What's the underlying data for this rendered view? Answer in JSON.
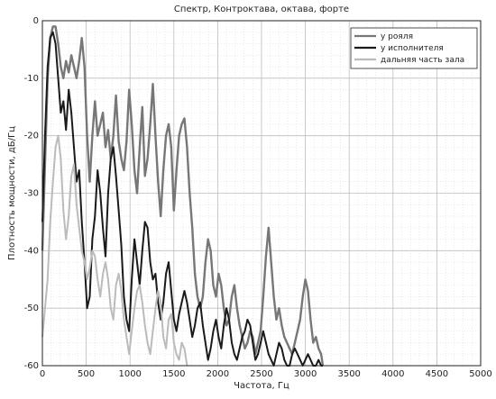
{
  "chart_data": {
    "type": "line",
    "title": "Спектр, Контроктава, октава, форте",
    "xlabel": "Частота, Гц",
    "ylabel": "Плотность мощности, дБ/Гц",
    "xlim": [
      0,
      5000
    ],
    "ylim": [
      -60,
      0
    ],
    "xticks": [
      0,
      500,
      1000,
      1500,
      2000,
      2500,
      3000,
      3500,
      4000,
      4500,
      5000
    ],
    "yticks": [
      0,
      -10,
      -20,
      -30,
      -40,
      -50,
      -60
    ],
    "grid": true,
    "legend": "top-right",
    "series": [
      {
        "name": "у рояля",
        "color": "#777777",
        "x": [
          0,
          30,
          60,
          90,
          120,
          150,
          180,
          210,
          240,
          270,
          300,
          330,
          360,
          390,
          420,
          450,
          480,
          510,
          540,
          570,
          600,
          630,
          660,
          690,
          720,
          750,
          780,
          810,
          840,
          870,
          900,
          930,
          960,
          990,
          1020,
          1050,
          1080,
          1110,
          1140,
          1170,
          1200,
          1230,
          1260,
          1290,
          1320,
          1350,
          1380,
          1410,
          1440,
          1470,
          1500,
          1530,
          1560,
          1590,
          1620,
          1650,
          1680,
          1710,
          1740,
          1770,
          1800,
          1830,
          1860,
          1890,
          1920,
          1950,
          1980,
          2010,
          2040,
          2070,
          2100,
          2130,
          2160,
          2190,
          2220,
          2250,
          2280,
          2310,
          2340,
          2370,
          2400,
          2430,
          2460,
          2490,
          2520,
          2550,
          2580,
          2610,
          2640,
          2670,
          2700,
          2730,
          2760,
          2790,
          2820,
          2850,
          2880,
          2910,
          2940,
          2970,
          3000,
          3030,
          3060,
          3090,
          3120,
          3150,
          3180,
          3200
        ],
        "y": [
          -40,
          -25,
          -10,
          -3,
          -1,
          -1,
          -4,
          -8,
          -10,
          -7,
          -9,
          -6,
          -8,
          -10,
          -7,
          -3,
          -8,
          -20,
          -28,
          -20,
          -14,
          -20,
          -18,
          -16,
          -22,
          -19,
          -24,
          -20,
          -13,
          -21,
          -24,
          -26,
          -21,
          -12,
          -18,
          -26,
          -30,
          -22,
          -15,
          -27,
          -24,
          -18,
          -11,
          -20,
          -28,
          -34,
          -26,
          -20,
          -18,
          -22,
          -33,
          -26,
          -20,
          -18,
          -17,
          -22,
          -30,
          -36,
          -44,
          -48,
          -50,
          -48,
          -42,
          -38,
          -40,
          -46,
          -48,
          -44,
          -46,
          -50,
          -53,
          -52,
          -48,
          -46,
          -50,
          -53,
          -55,
          -57,
          -56,
          -54,
          -55,
          -58,
          -56,
          -54,
          -48,
          -41,
          -36,
          -42,
          -48,
          -52,
          -50,
          -53,
          -55,
          -56,
          -57,
          -58,
          -56,
          -54,
          -52,
          -48,
          -45,
          -47,
          -52,
          -56,
          -55,
          -57,
          -58,
          -60
        ]
      },
      {
        "name": "у исполнителя",
        "color": "#1a1a1a",
        "x": [
          0,
          30,
          60,
          90,
          120,
          150,
          180,
          210,
          240,
          270,
          300,
          330,
          360,
          390,
          420,
          450,
          480,
          510,
          540,
          570,
          600,
          630,
          660,
          690,
          720,
          750,
          780,
          810,
          840,
          870,
          900,
          930,
          960,
          990,
          1020,
          1050,
          1080,
          1110,
          1140,
          1170,
          1200,
          1230,
          1260,
          1290,
          1320,
          1350,
          1380,
          1410,
          1440,
          1470,
          1500,
          1530,
          1560,
          1590,
          1620,
          1650,
          1680,
          1710,
          1740,
          1770,
          1800,
          1830,
          1860,
          1890,
          1920,
          1950,
          1980,
          2010,
          2040,
          2070,
          2100,
          2130,
          2160,
          2190,
          2220,
          2250,
          2280,
          2310,
          2340,
          2370,
          2400,
          2430,
          2460,
          2490,
          2520,
          2550,
          2580,
          2610,
          2640,
          2670,
          2700,
          2730,
          2760,
          2790,
          2820,
          2850,
          2880,
          2910,
          2940,
          2970,
          3000,
          3030,
          3060,
          3090,
          3120,
          3150,
          3180,
          3200
        ],
        "y": [
          -35,
          -20,
          -8,
          -3,
          -2,
          -4,
          -10,
          -16,
          -14,
          -19,
          -12,
          -16,
          -22,
          -28,
          -26,
          -35,
          -42,
          -50,
          -48,
          -38,
          -34,
          -26,
          -30,
          -36,
          -41,
          -30,
          -24,
          -22,
          -27,
          -33,
          -39,
          -48,
          -52,
          -54,
          -45,
          -38,
          -42,
          -46,
          -40,
          -35,
          -36,
          -42,
          -45,
          -44,
          -49,
          -52,
          -49,
          -44,
          -42,
          -47,
          -52,
          -54,
          -51,
          -49,
          -47,
          -49,
          -52,
          -55,
          -53,
          -50,
          -49,
          -53,
          -56,
          -59,
          -57,
          -54,
          -52,
          -55,
          -57,
          -53,
          -50,
          -52,
          -56,
          -58,
          -59,
          -57,
          -55,
          -54,
          -52,
          -53,
          -56,
          -59,
          -58,
          -56,
          -54,
          -56,
          -58,
          -59,
          -60,
          -58,
          -56,
          -57,
          -59,
          -60,
          -60,
          -58,
          -57,
          -58,
          -59,
          -60,
          -59,
          -58,
          -59,
          -60,
          -60,
          -59,
          -60,
          -60
        ]
      },
      {
        "name": "дальняя часть зала",
        "color": "#bbbbbb",
        "x": [
          0,
          30,
          60,
          90,
          120,
          150,
          180,
          210,
          240,
          270,
          300,
          330,
          360,
          390,
          420,
          450,
          480,
          510,
          540,
          570,
          600,
          630,
          660,
          690,
          720,
          750,
          780,
          810,
          840,
          870,
          900,
          930,
          960,
          990,
          1020,
          1050,
          1080,
          1110,
          1140,
          1170,
          1200,
          1230,
          1260,
          1290,
          1320,
          1350,
          1380,
          1410,
          1440,
          1470,
          1500,
          1530,
          1560,
          1590,
          1620,
          1650
        ],
        "y": [
          -55,
          -50,
          -45,
          -35,
          -28,
          -22,
          -20,
          -24,
          -33,
          -38,
          -34,
          -27,
          -25,
          -32,
          -36,
          -40,
          -42,
          -45,
          -43,
          -40,
          -41,
          -45,
          -48,
          -44,
          -42,
          -45,
          -50,
          -52,
          -46,
          -44,
          -47,
          -52,
          -55,
          -58,
          -54,
          -50,
          -47,
          -46,
          -49,
          -53,
          -56,
          -58,
          -54,
          -50,
          -47,
          -49,
          -55,
          -57,
          -52,
          -51,
          -56,
          -58,
          -59,
          -56,
          -57,
          -60
        ]
      }
    ]
  }
}
